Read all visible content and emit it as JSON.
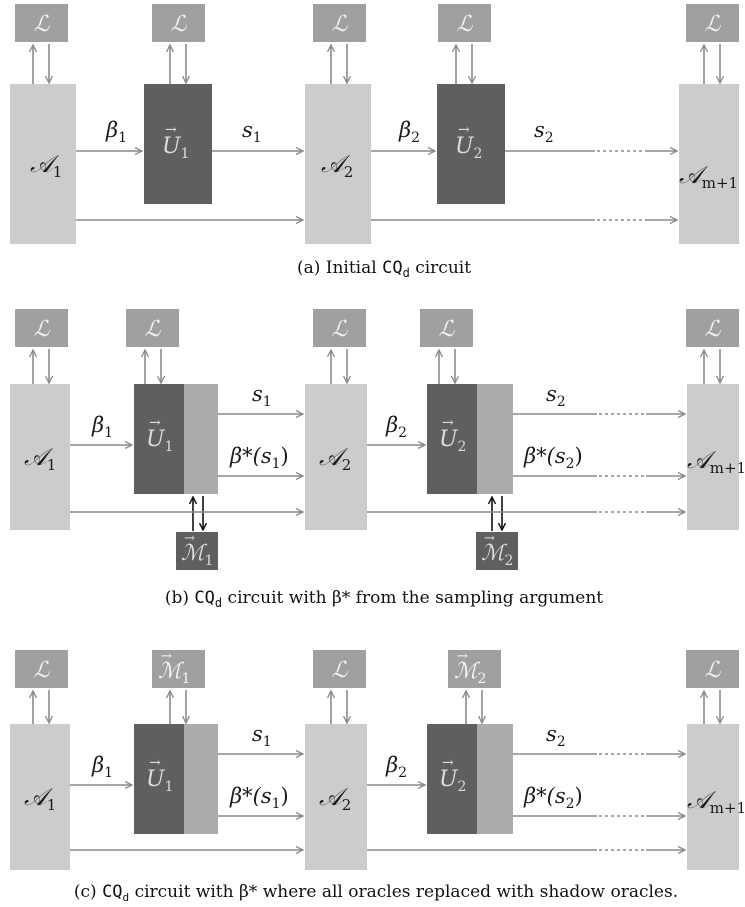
{
  "symbols": {
    "L": "ℒ",
    "A1": "𝒜",
    "A1_sub": "1",
    "A2": "𝒜",
    "A2_sub": "2",
    "Am": "𝒜",
    "Am_sub": "m+1",
    "U1": "U",
    "U1_sub": "1",
    "U2": "U",
    "U2_sub": "2",
    "M1": "ℳ",
    "M1_sub": "1",
    "M2": "ℳ",
    "M2_sub": "2",
    "beta1": "β",
    "beta1_sub": "1",
    "beta2": "β",
    "beta2_sub": "2",
    "s1": "s",
    "s1_sub": "1",
    "s2": "s",
    "s2_sub": "2",
    "bstar_s1": "β*(s",
    "bstar_s1_sub": "1",
    "bstar_s2": "β*(s",
    "bstar_s2_sub": "2",
    "close_paren": ")",
    "vec": "→"
  },
  "captions": {
    "a_prefix": "(a) Initial ",
    "a_cq": "CQ",
    "a_cq_sub": "d",
    "a_suffix": " circuit",
    "b_prefix": "(b) ",
    "b_cq": "CQ",
    "b_cq_sub": "d",
    "b_suffix": " circuit with β* from the sampling argument",
    "c_prefix": "(c) ",
    "c_cq": "CQ",
    "c_cq_sub": "d",
    "c_suffix": " circuit with β* where all oracles replaced with shadow oracles."
  },
  "colors": {
    "light_box": "#cccccc",
    "dark_box": "#5f5f5f",
    "mid_box": "#ababab",
    "oracle_box": "#a0a0a0",
    "arrow": "#8a8a8a",
    "arrow_dark": "#111111"
  }
}
